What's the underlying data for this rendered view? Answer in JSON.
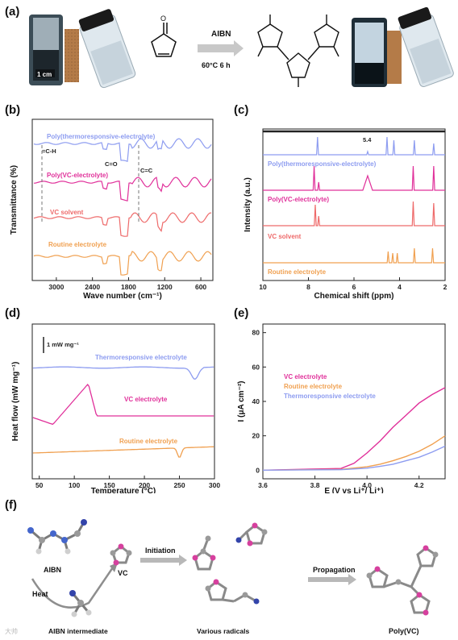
{
  "panels": {
    "a": "(a)",
    "b": "(b)",
    "c": "(c)",
    "d": "(d)",
    "e": "(e)",
    "f": "(f)"
  },
  "scheme_a": {
    "scale_bar": "1 cm",
    "reagent": "AIBN",
    "condition": "60°C 6 h"
  },
  "colors": {
    "blue": "#8d9cf0",
    "pink": "#e0309a",
    "red": "#ee6a6a",
    "orange": "#f0a050"
  },
  "chart_data": [
    {
      "id": "b",
      "type": "line",
      "xlabel": "Wave number (cm⁻¹)",
      "ylabel": "Transmittance (%)",
      "xlim": [
        3400,
        400
      ],
      "x_ticks": [
        "3000",
        "2400",
        "1800",
        "1200",
        "600"
      ],
      "series": [
        {
          "name": "Poly(thermoresponsive-electrolyte)",
          "color": "#8d9cf0"
        },
        {
          "name": "Poly(VC-electrolyte)",
          "color": "#e0309a"
        },
        {
          "name": "VC solvent",
          "color": "#ee6a6a"
        },
        {
          "name": "Routine electrolyte",
          "color": "#f0a050"
        }
      ],
      "annotations": [
        "=C-H",
        "C=O",
        "C=C"
      ]
    },
    {
      "id": "c",
      "type": "line",
      "xlabel": "Chemical shift (ppm)",
      "ylabel": "Intensity (a.u.)",
      "xlim": [
        10,
        2
      ],
      "x_ticks": [
        "10",
        "8",
        "6",
        "4",
        "2"
      ],
      "series": [
        {
          "name": "Poly(thermoresponsive-electrolyte)",
          "color": "#8d9cf0"
        },
        {
          "name": "Poly(VC-electrolyte)",
          "color": "#e0309a"
        },
        {
          "name": "VC solvent",
          "color": "#ee6a6a"
        },
        {
          "name": "Routine electrolyte",
          "color": "#f0a050"
        }
      ],
      "annotations": [
        "5.4"
      ]
    },
    {
      "id": "d",
      "type": "line",
      "xlabel": "Temperature (°C)",
      "ylabel": "Heat flow (mW mg⁻¹)",
      "xlim": [
        40,
        300
      ],
      "x_ticks": [
        "50",
        "100",
        "150",
        "200",
        "250",
        "300"
      ],
      "scale_bar": "1 mW mg⁻¹",
      "series": [
        {
          "name": "Thermoresponsive electrolyte",
          "color": "#8d9cf0"
        },
        {
          "name": "VC electrolyte",
          "color": "#e0309a"
        },
        {
          "name": "Routine electrolyte",
          "color": "#f0a050"
        }
      ]
    },
    {
      "id": "e",
      "type": "line",
      "xlabel": "E (V vs Li⁺/ Li⁺)",
      "ylabel": "I (μA cm⁻²)",
      "xlim": [
        3.6,
        4.3
      ],
      "ylim": [
        -5,
        85
      ],
      "x_ticks": [
        "3.6",
        "3.8",
        "4.0",
        "4.2"
      ],
      "y_ticks": [
        "0",
        "20",
        "40",
        "60",
        "80"
      ],
      "series": [
        {
          "name": "VC electrolyte",
          "color": "#e0309a",
          "x": [
            3.6,
            3.9,
            3.95,
            4.0,
            4.05,
            4.1,
            4.15,
            4.2,
            4.25,
            4.3
          ],
          "y": [
            0,
            1,
            4,
            10,
            17,
            25,
            32,
            39,
            44,
            48
          ]
        },
        {
          "name": "Routine electrolyte",
          "color": "#f0a050",
          "x": [
            3.6,
            3.9,
            4.0,
            4.05,
            4.1,
            4.15,
            4.2,
            4.25,
            4.3
          ],
          "y": [
            0,
            0.5,
            2,
            3.5,
            5.5,
            8,
            11,
            15,
            20
          ]
        },
        {
          "name": "Thermoresponsive electrolyte",
          "color": "#8d9cf0",
          "x": [
            3.6,
            3.9,
            4.0,
            4.05,
            4.1,
            4.15,
            4.2,
            4.25,
            4.3
          ],
          "y": [
            0,
            0.3,
            1.2,
            2.2,
            3.5,
            5.5,
            7.5,
            10.5,
            14
          ]
        }
      ]
    }
  ],
  "scheme_f": {
    "aibn": "AIBN",
    "heat": "Heat",
    "vc": "VC",
    "intermediate": "AIBN intermediate",
    "initiation": "Initiation",
    "radicals": "Various radicals",
    "propagation": "Propagation",
    "product": "Poly(VC)"
  },
  "watermark": "大帅"
}
